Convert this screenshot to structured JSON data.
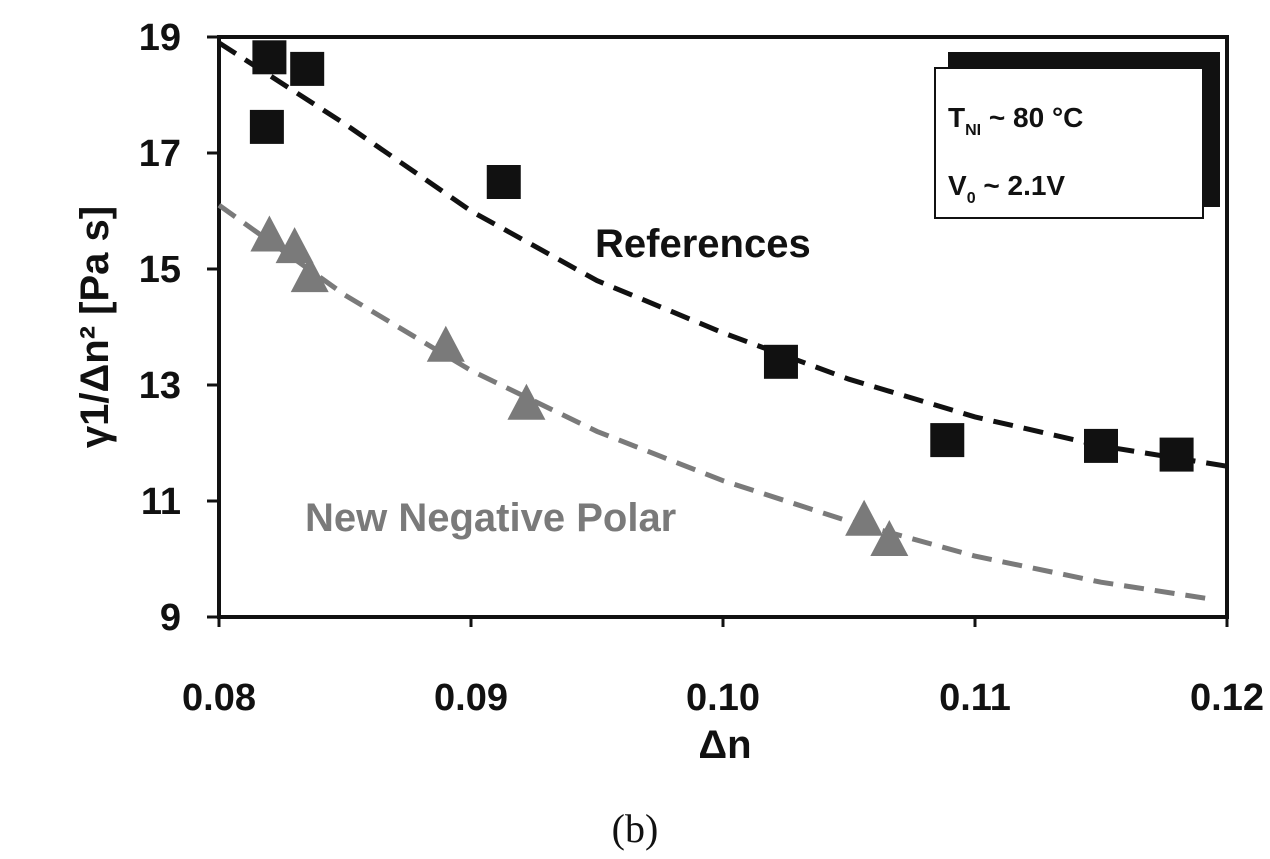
{
  "chart_data": {
    "type": "scatter",
    "xlabel": "Δn",
    "ylabel": "γ1/Δn² [Pa s]",
    "xlim": [
      0.08,
      0.12
    ],
    "ylim": [
      9,
      19
    ],
    "x_ticks": [
      "0.08",
      "0.09",
      "0.10",
      "0.11",
      "0.12"
    ],
    "y_ticks": [
      "9",
      "11",
      "13",
      "15",
      "17",
      "19"
    ],
    "grid": false,
    "series": [
      {
        "name": "References",
        "marker": "square",
        "color": "#111111",
        "points": [
          {
            "x": 0.082,
            "y": 18.65
          },
          {
            "x": 0.0835,
            "y": 18.45
          },
          {
            "x": 0.0819,
            "y": 17.45
          },
          {
            "x": 0.0913,
            "y": 16.5
          },
          {
            "x": 0.1023,
            "y": 13.4
          },
          {
            "x": 0.1089,
            "y": 12.05
          },
          {
            "x": 0.115,
            "y": 11.95
          },
          {
            "x": 0.118,
            "y": 11.8
          }
        ],
        "trend": [
          {
            "x": 0.08,
            "y": 18.9
          },
          {
            "x": 0.085,
            "y": 17.5
          },
          {
            "x": 0.09,
            "y": 16.0
          },
          {
            "x": 0.095,
            "y": 14.8
          },
          {
            "x": 0.1,
            "y": 13.9
          },
          {
            "x": 0.105,
            "y": 13.1
          },
          {
            "x": 0.11,
            "y": 12.45
          },
          {
            "x": 0.115,
            "y": 11.95
          },
          {
            "x": 0.12,
            "y": 11.6
          }
        ]
      },
      {
        "name": "New Negative Polar",
        "marker": "triangle",
        "color": "#7a7a7a",
        "points": [
          {
            "x": 0.082,
            "y": 15.55
          },
          {
            "x": 0.083,
            "y": 15.35
          },
          {
            "x": 0.0836,
            "y": 14.85
          },
          {
            "x": 0.089,
            "y": 13.65
          },
          {
            "x": 0.0922,
            "y": 12.65
          },
          {
            "x": 0.1056,
            "y": 10.65
          },
          {
            "x": 0.1066,
            "y": 10.3
          }
        ],
        "trend": [
          {
            "x": 0.08,
            "y": 16.1
          },
          {
            "x": 0.085,
            "y": 14.55
          },
          {
            "x": 0.09,
            "y": 13.25
          },
          {
            "x": 0.095,
            "y": 12.2
          },
          {
            "x": 0.1,
            "y": 11.35
          },
          {
            "x": 0.105,
            "y": 10.65
          },
          {
            "x": 0.11,
            "y": 10.05
          },
          {
            "x": 0.115,
            "y": 9.6
          },
          {
            "x": 0.1195,
            "y": 9.3
          }
        ]
      }
    ],
    "annotations": {
      "line1_main": "T",
      "line1_sub": "NI",
      "line1_rest": " ~ 80 °C",
      "line2_main": "V",
      "line2_sub": "0",
      "line2_rest": " ~ 2.1V"
    },
    "caption": "(b)"
  }
}
